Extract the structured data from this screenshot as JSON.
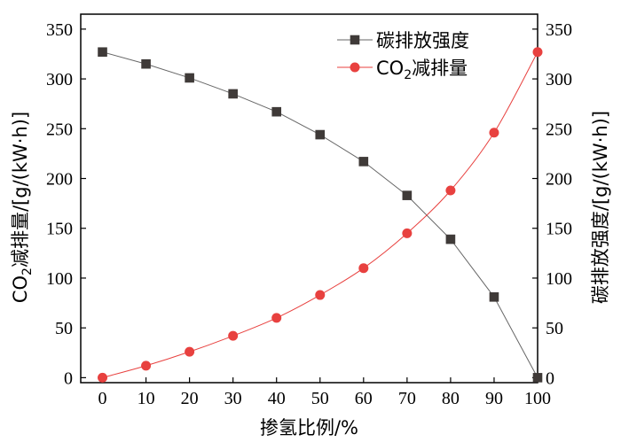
{
  "chart_data": {
    "type": "line",
    "xlabel": "掺氢比例/%",
    "ylabel_left": {
      "prefix": "CO",
      "sub": "2",
      "suffix": "减排量/[g/(kW·h)]"
    },
    "ylabel_right": "碳排放强度/[g/(kW·h)]",
    "x": [
      0,
      10,
      20,
      30,
      40,
      50,
      60,
      70,
      80,
      90,
      100
    ],
    "x_ticks": [
      "0",
      "10",
      "20",
      "30",
      "40",
      "50",
      "60",
      "70",
      "80",
      "90",
      "100"
    ],
    "xlim": [
      -5,
      100
    ],
    "ylim_left": [
      -5,
      365
    ],
    "ylim_right": [
      -5,
      365
    ],
    "y_ticks": [
      "0",
      "50",
      "100",
      "150",
      "200",
      "250",
      "300",
      "350"
    ],
    "grid": false,
    "legend_position": "top-right",
    "series": [
      {
        "name": "碳排放强度",
        "axis": "right",
        "marker": "square",
        "color": "#3f3a38",
        "line_color": "#666666",
        "values": [
          327,
          315,
          301,
          285,
          267,
          244,
          217,
          183,
          139,
          81,
          0
        ]
      },
      {
        "name_prefix": "CO",
        "name_sub": "2",
        "name_suffix": "减排量",
        "axis": "left",
        "marker": "circle",
        "color": "#e8413f",
        "line_color": "#e8413f",
        "values": [
          0,
          12,
          26,
          42,
          60,
          83,
          110,
          145,
          188,
          246,
          327
        ]
      }
    ]
  }
}
